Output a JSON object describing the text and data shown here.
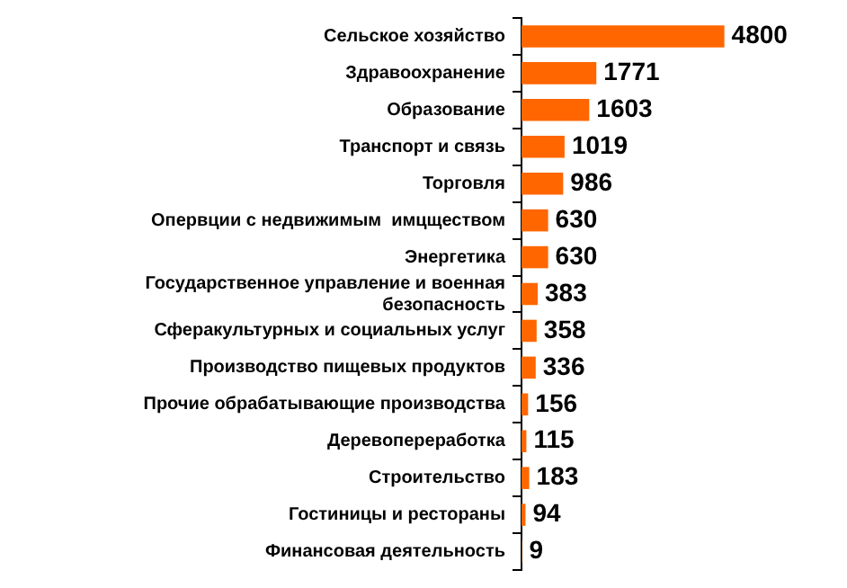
{
  "chart_data": {
    "type": "bar",
    "orientation": "horizontal",
    "data_labels": true,
    "grid": false,
    "legend": false,
    "tick_labels": "y",
    "categories": [
      "Сельское хозяйство",
      "Здравоохранение",
      "Образование",
      "Транспорт и связь",
      "Торговля",
      "Опервции с недвижимым  имцществом",
      "Энергетика",
      "Государственное управление и военная безопасность",
      "Сферакультурных и социальных услуг",
      "Производство пищевых продуктов",
      "Прочие обрабатывающие производства",
      "Деревопереработка",
      "Строительство",
      "Гостиницы и рестораны",
      "Финансовая деятельность"
    ],
    "values": [
      4800,
      1771,
      1603,
      1019,
      986,
      630,
      630,
      383,
      358,
      336,
      156,
      115,
      183,
      94,
      9
    ],
    "color": "#ff6600"
  }
}
